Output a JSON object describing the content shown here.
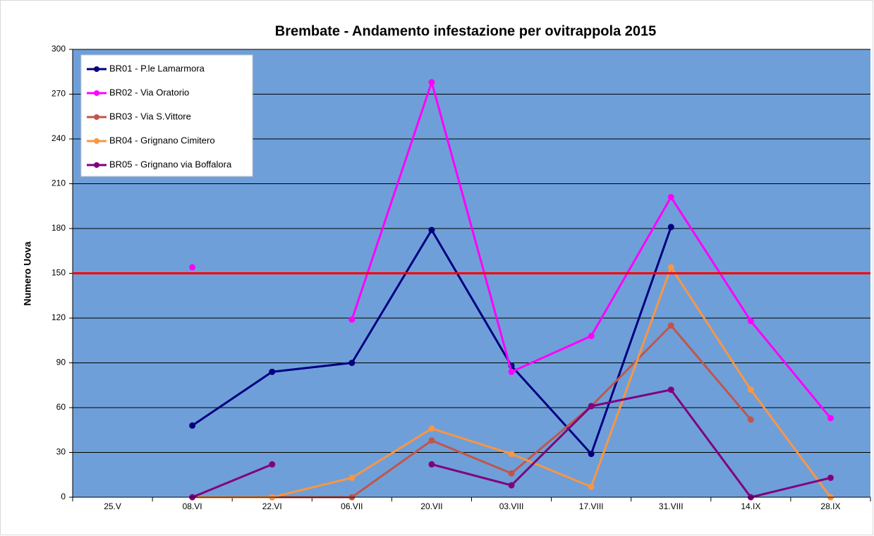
{
  "chart_data": {
    "type": "line",
    "title": "Brembate - Andamento infestazione per ovitrappola 2015",
    "y_label": "Numero Uova",
    "categories": [
      "25.V",
      "08.VI",
      "22.VI",
      "06.VII",
      "20.VII",
      "03.VIII",
      "17.VIII",
      "31.VIII",
      "14.IX",
      "28.IX"
    ],
    "series": [
      {
        "name": "BR01 - P.le Lamarmora",
        "color": "#000080",
        "values": [
          null,
          48,
          84,
          90,
          179,
          88,
          29,
          181,
          null,
          null
        ]
      },
      {
        "name": "BR02 - Via Oratorio",
        "color": "#ff00ff",
        "values": [
          null,
          154,
          null,
          119,
          278,
          84,
          108,
          201,
          118,
          53
        ]
      },
      {
        "name": "BR03 - Via S.Vittore",
        "color": "#c0564b",
        "values": [
          null,
          null,
          0,
          0,
          38,
          16,
          61,
          115,
          52,
          null
        ]
      },
      {
        "name": "BR04 - Grignano Cimitero",
        "color": "#f79646",
        "values": [
          null,
          0,
          0,
          13,
          46,
          29,
          7,
          154,
          72,
          0
        ]
      },
      {
        "name": "BR05 - Grignano via Boffalora",
        "color": "#800080",
        "values": [
          null,
          0,
          22,
          null,
          22,
          8,
          61,
          72,
          0,
          13
        ]
      }
    ],
    "threshold": 150,
    "threshold_color": "#ff0000",
    "ylim": [
      0,
      300
    ],
    "yticks": [
      0,
      30,
      60,
      90,
      120,
      150,
      180,
      210,
      240,
      270,
      300
    ],
    "grid": true,
    "plot_color": "#6f9fd8",
    "legend": "top-left"
  }
}
